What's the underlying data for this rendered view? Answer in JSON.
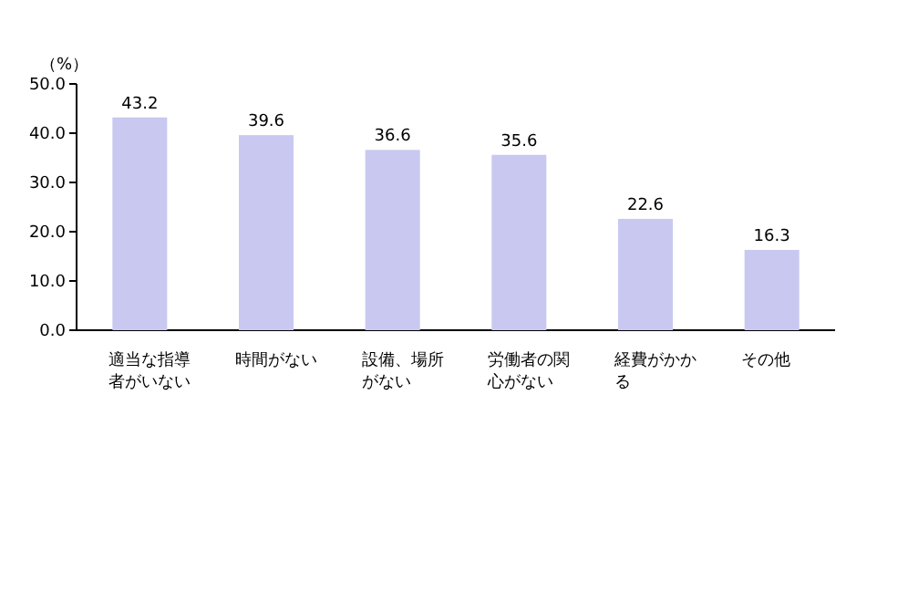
{
  "chart_data": {
    "type": "bar",
    "ylabel": "（%）",
    "categories": [
      "適当な指導者がいない",
      "時間がない",
      "設備、場所がない",
      "労働者の関心がない",
      "経費がかかる",
      "その他"
    ],
    "values": [
      43.2,
      39.6,
      36.6,
      35.6,
      22.6,
      16.3
    ],
    "color": "#c8c8f0",
    "data_labels": true,
    "grid": false,
    "ylim": [
      0,
      50
    ],
    "yticks": [
      {
        "value": 0,
        "label": "0.0"
      },
      {
        "value": 10,
        "label": "10.0"
      },
      {
        "value": 20,
        "label": "20.0"
      },
      {
        "value": 30,
        "label": "30.0"
      },
      {
        "value": 40,
        "label": "40.0"
      },
      {
        "value": 50,
        "label": "50.0"
      }
    ]
  }
}
